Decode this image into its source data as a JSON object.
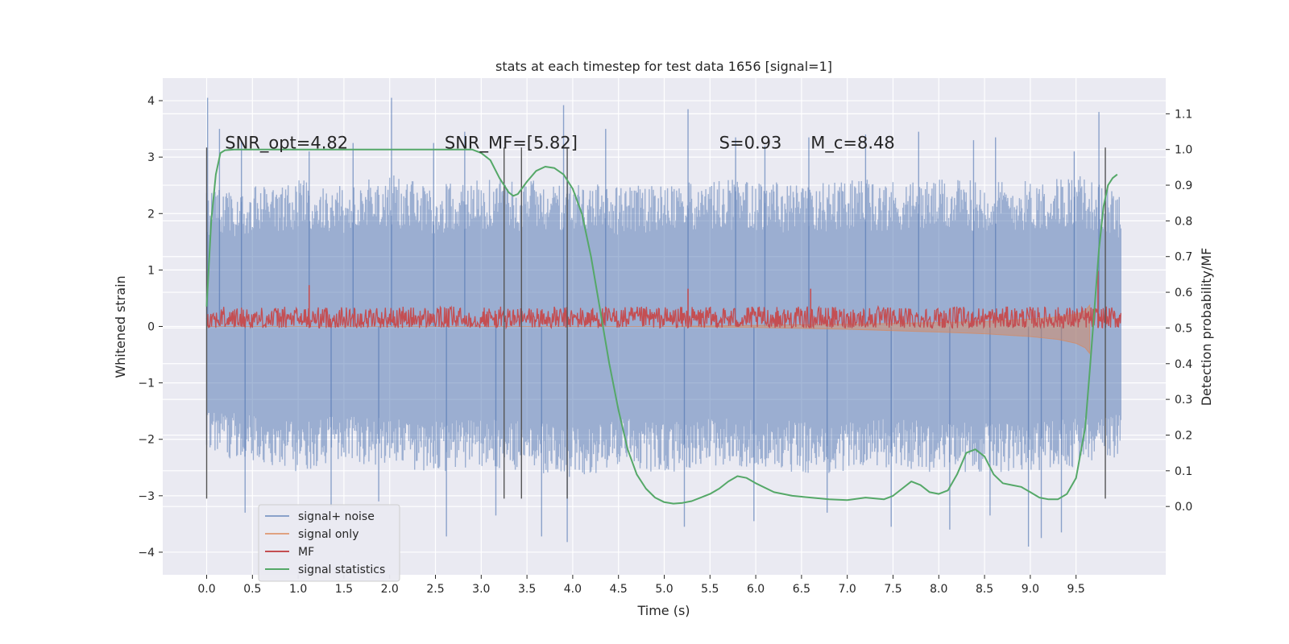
{
  "chart_data": {
    "type": "line",
    "title": "stats at each timestep for test data 1656 [signal=1]",
    "xlabel": "Time (s)",
    "ylabel": "Whitened strain",
    "y2label": "Detection probability/MF",
    "xlim": [
      -0.48,
      10.48
    ],
    "ylim": [
      -4.4,
      4.4
    ],
    "y2lim": [
      -0.1913,
      1.2
    ],
    "x_ticks": [
      0.0,
      0.5,
      1.0,
      1.5,
      2.0,
      2.5,
      3.0,
      3.5,
      4.0,
      4.5,
      5.0,
      5.5,
      6.0,
      6.5,
      7.0,
      7.5,
      8.0,
      8.5,
      9.0,
      9.5
    ],
    "x_tick_labels": [
      "0.0",
      "0.5",
      "1.0",
      "1.5",
      "2.0",
      "2.5",
      "3.0",
      "3.5",
      "4.0",
      "4.5",
      "5.0",
      "5.5",
      "6.0",
      "6.5",
      "7.0",
      "7.5",
      "8.0",
      "8.5",
      "9.0",
      "9.5"
    ],
    "y_ticks": [
      4,
      3,
      2,
      1,
      0,
      -1,
      -2,
      -3,
      -4
    ],
    "y_tick_labels": [
      "4",
      "3",
      "2",
      "1",
      "0",
      "−1",
      "−2",
      "−3",
      "−4"
    ],
    "y2_ticks": [
      1.1,
      1.0,
      0.9,
      0.8,
      0.7,
      0.6,
      0.5,
      0.4,
      0.3,
      0.2,
      0.1,
      0.0
    ],
    "y2_tick_labels": [
      "1.1",
      "1.0",
      "0.9",
      "0.8",
      "0.7",
      "0.6",
      "0.5",
      "0.4",
      "0.3",
      "0.2",
      "0.1",
      "0.0"
    ],
    "grid": true,
    "legend_position": "lower-left",
    "annotations": [
      {
        "x": 0.2,
        "y": 3.15,
        "text": "SNR_opt=4.82"
      },
      {
        "x": 2.6,
        "y": 3.15,
        "text": "SNR_MF=[5.82]"
      },
      {
        "x": 5.6,
        "y": 3.15,
        "text": "S=0.93"
      },
      {
        "x": 6.6,
        "y": 3.15,
        "text": "M_c=8.48"
      }
    ],
    "markers": {
      "x": [
        0.0,
        3.25,
        3.44,
        3.94,
        9.82
      ],
      "ymin": -3.05,
      "ymax": 3.17,
      "color": "#555555"
    },
    "series": [
      {
        "name": "signal+ noise",
        "axis": "left",
        "color": "#4c72b0",
        "x_range": [
          0.0,
          9.99
        ],
        "envelope": {
          "x": [
            0.0,
            0.5,
            1.0,
            1.5,
            2.0,
            2.5,
            3.0,
            3.5,
            4.0,
            4.5,
            5.0,
            5.5,
            6.0,
            6.5,
            7.0,
            7.5,
            8.0,
            8.5,
            9.0,
            9.5,
            9.99
          ],
          "upper": [
            2.4,
            2.5,
            2.6,
            2.5,
            2.7,
            2.5,
            2.6,
            2.6,
            2.6,
            2.5,
            2.5,
            2.6,
            2.6,
            2.5,
            2.6,
            2.6,
            2.6,
            2.6,
            2.6,
            2.7,
            2.4
          ],
          "lower": [
            -2.3,
            -2.4,
            -2.6,
            -2.4,
            -2.5,
            -2.6,
            -2.5,
            -2.6,
            -2.7,
            -2.5,
            -2.6,
            -2.5,
            -2.5,
            -2.6,
            -2.6,
            -2.5,
            -2.6,
            -2.6,
            -2.6,
            -2.5,
            -2.3
          ]
        },
        "peaks": [
          {
            "x": 0.01,
            "y": 4.05
          },
          {
            "x": 0.14,
            "y": 3.5
          },
          {
            "x": 0.38,
            "y": 3.3
          },
          {
            "x": 1.12,
            "y": 3.1
          },
          {
            "x": 1.6,
            "y": 3.25
          },
          {
            "x": 2.02,
            "y": 4.05
          },
          {
            "x": 2.48,
            "y": 3.25
          },
          {
            "x": 2.82,
            "y": 3.45
          },
          {
            "x": 3.9,
            "y": 3.92
          },
          {
            "x": 4.36,
            "y": 3.5
          },
          {
            "x": 5.26,
            "y": 3.85
          },
          {
            "x": 5.78,
            "y": 3.35
          },
          {
            "x": 6.1,
            "y": 3.2
          },
          {
            "x": 6.58,
            "y": 3.35
          },
          {
            "x": 7.2,
            "y": 3.4
          },
          {
            "x": 7.78,
            "y": 3.45
          },
          {
            "x": 8.38,
            "y": 3.3
          },
          {
            "x": 8.62,
            "y": 3.35
          },
          {
            "x": 9.48,
            "y": 3.1
          },
          {
            "x": 9.75,
            "y": 3.8
          },
          {
            "x": 0.42,
            "y": -3.3
          },
          {
            "x": 1.36,
            "y": -3.2
          },
          {
            "x": 1.88,
            "y": -3.1
          },
          {
            "x": 2.62,
            "y": -3.72
          },
          {
            "x": 3.16,
            "y": -3.35
          },
          {
            "x": 3.66,
            "y": -3.72
          },
          {
            "x": 3.94,
            "y": -3.82
          },
          {
            "x": 5.22,
            "y": -3.55
          },
          {
            "x": 5.98,
            "y": -3.45
          },
          {
            "x": 6.78,
            "y": -3.3
          },
          {
            "x": 7.48,
            "y": -3.55
          },
          {
            "x": 8.12,
            "y": -3.6
          },
          {
            "x": 8.56,
            "y": -3.35
          },
          {
            "x": 8.98,
            "y": -3.9
          },
          {
            "x": 9.12,
            "y": -3.75
          },
          {
            "x": 9.34,
            "y": -3.65
          }
        ]
      },
      {
        "name": "signal only",
        "axis": "left",
        "color": "#dd8452",
        "x": [
          0.0,
          4.0,
          5.0,
          6.0,
          7.0,
          8.0,
          8.5,
          9.0,
          9.3,
          9.5,
          9.6,
          9.65
        ],
        "lower": [
          0.0,
          0.0,
          0.0,
          -0.02,
          -0.05,
          -0.1,
          -0.13,
          -0.18,
          -0.23,
          -0.3,
          -0.38,
          -0.48
        ],
        "upper": [
          0.0,
          0.0,
          0.0,
          0.02,
          0.04,
          0.07,
          0.09,
          0.13,
          0.17,
          0.22,
          0.28,
          0.38
        ]
      },
      {
        "name": "MF",
        "axis": "right",
        "color": "#c44e52",
        "x_range": [
          0.0,
          9.99
        ],
        "base": 0.5,
        "typical_peak": 0.56,
        "peaks": [
          {
            "x": 1.12,
            "y": 0.62
          },
          {
            "x": 5.26,
            "y": 0.61
          },
          {
            "x": 6.6,
            "y": 0.61
          },
          {
            "x": 9.74,
            "y": 0.66
          }
        ]
      },
      {
        "name": "signal statistics",
        "axis": "right",
        "color": "#55a868",
        "x": [
          0.0,
          0.05,
          0.1,
          0.15,
          0.2,
          0.3,
          0.5,
          1.0,
          2.0,
          2.9,
          3.0,
          3.1,
          3.2,
          3.3,
          3.35,
          3.4,
          3.5,
          3.6,
          3.7,
          3.8,
          3.9,
          4.0,
          4.1,
          4.2,
          4.3,
          4.4,
          4.5,
          4.6,
          4.7,
          4.8,
          4.9,
          5.0,
          5.1,
          5.2,
          5.3,
          5.4,
          5.5,
          5.6,
          5.7,
          5.8,
          5.9,
          6.0,
          6.2,
          6.4,
          6.6,
          6.8,
          7.0,
          7.2,
          7.4,
          7.5,
          7.6,
          7.7,
          7.8,
          7.9,
          8.0,
          8.1,
          8.2,
          8.3,
          8.4,
          8.5,
          8.6,
          8.7,
          8.8,
          8.9,
          9.0,
          9.1,
          9.2,
          9.3,
          9.4,
          9.5,
          9.6,
          9.65,
          9.7,
          9.75,
          9.8,
          9.85,
          9.9,
          9.95
        ],
        "y": [
          0.56,
          0.8,
          0.93,
          0.99,
          0.998,
          1.0,
          1.0,
          1.0,
          1.0,
          1.0,
          0.99,
          0.97,
          0.92,
          0.88,
          0.87,
          0.875,
          0.91,
          0.94,
          0.952,
          0.948,
          0.93,
          0.89,
          0.82,
          0.7,
          0.55,
          0.4,
          0.27,
          0.16,
          0.09,
          0.05,
          0.025,
          0.012,
          0.008,
          0.01,
          0.015,
          0.025,
          0.035,
          0.05,
          0.07,
          0.085,
          0.08,
          0.065,
          0.04,
          0.03,
          0.025,
          0.02,
          0.018,
          0.025,
          0.02,
          0.03,
          0.05,
          0.07,
          0.06,
          0.04,
          0.035,
          0.045,
          0.09,
          0.15,
          0.16,
          0.14,
          0.09,
          0.065,
          0.06,
          0.055,
          0.04,
          0.025,
          0.02,
          0.02,
          0.035,
          0.08,
          0.22,
          0.38,
          0.55,
          0.72,
          0.84,
          0.9,
          0.92,
          0.93
        ]
      }
    ]
  }
}
